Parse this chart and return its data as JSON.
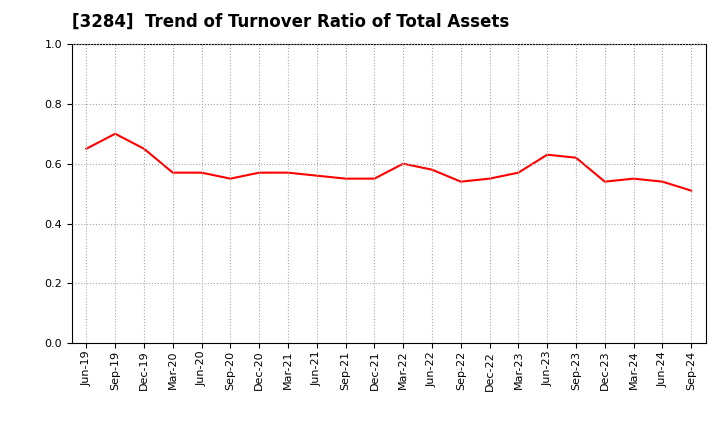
{
  "title": "[3284]  Trend of Turnover Ratio of Total Assets",
  "labels": [
    "Jun-19",
    "Sep-19",
    "Dec-19",
    "Mar-20",
    "Jun-20",
    "Sep-20",
    "Dec-20",
    "Mar-21",
    "Jun-21",
    "Sep-21",
    "Dec-21",
    "Mar-22",
    "Jun-22",
    "Sep-22",
    "Dec-22",
    "Mar-23",
    "Jun-23",
    "Sep-23",
    "Dec-23",
    "Mar-24",
    "Jun-24",
    "Sep-24"
  ],
  "values": [
    0.65,
    0.7,
    0.65,
    0.57,
    0.57,
    0.55,
    0.57,
    0.57,
    0.56,
    0.55,
    0.55,
    0.6,
    0.58,
    0.54,
    0.55,
    0.57,
    0.63,
    0.62,
    0.54,
    0.55,
    0.54,
    0.51
  ],
  "line_color": "#FF0000",
  "line_width": 1.5,
  "ylim": [
    0.0,
    1.0
  ],
  "yticks": [
    0.0,
    0.2,
    0.4,
    0.6,
    0.8,
    1.0
  ],
  "grid_color": "#aaaaaa",
  "bg_color": "#ffffff",
  "title_fontsize": 12,
  "tick_fontsize": 8
}
